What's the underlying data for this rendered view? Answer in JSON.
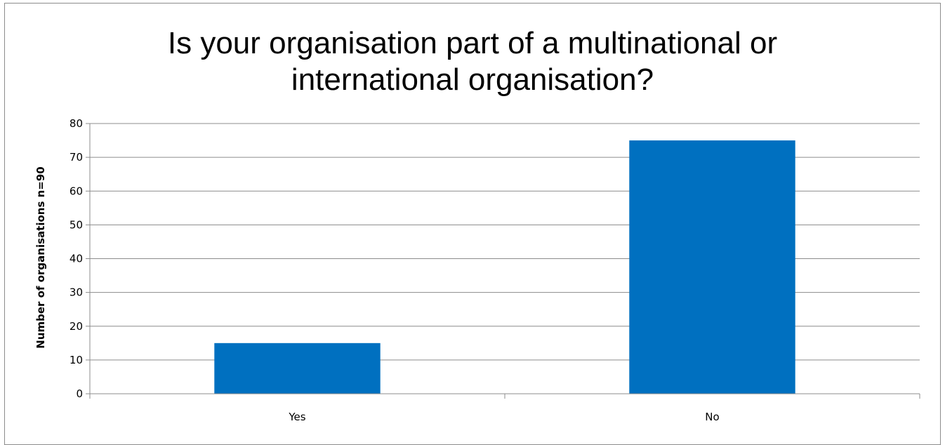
{
  "chart_data": {
    "type": "bar",
    "title": "Is your organisation part of a multinational or international organisation?",
    "title_lines": [
      "Is your organisation part of a multinational or",
      "international organisation?"
    ],
    "xlabel": "",
    "ylabel": "Number of organisations n=90",
    "categories": [
      "Yes",
      "No"
    ],
    "values": [
      15,
      75
    ],
    "ylim": [
      0,
      80
    ],
    "yticks": [
      0,
      10,
      20,
      30,
      40,
      50,
      60,
      70,
      80
    ],
    "grid": true,
    "bar_color": "#0070C0",
    "legend": "none"
  }
}
